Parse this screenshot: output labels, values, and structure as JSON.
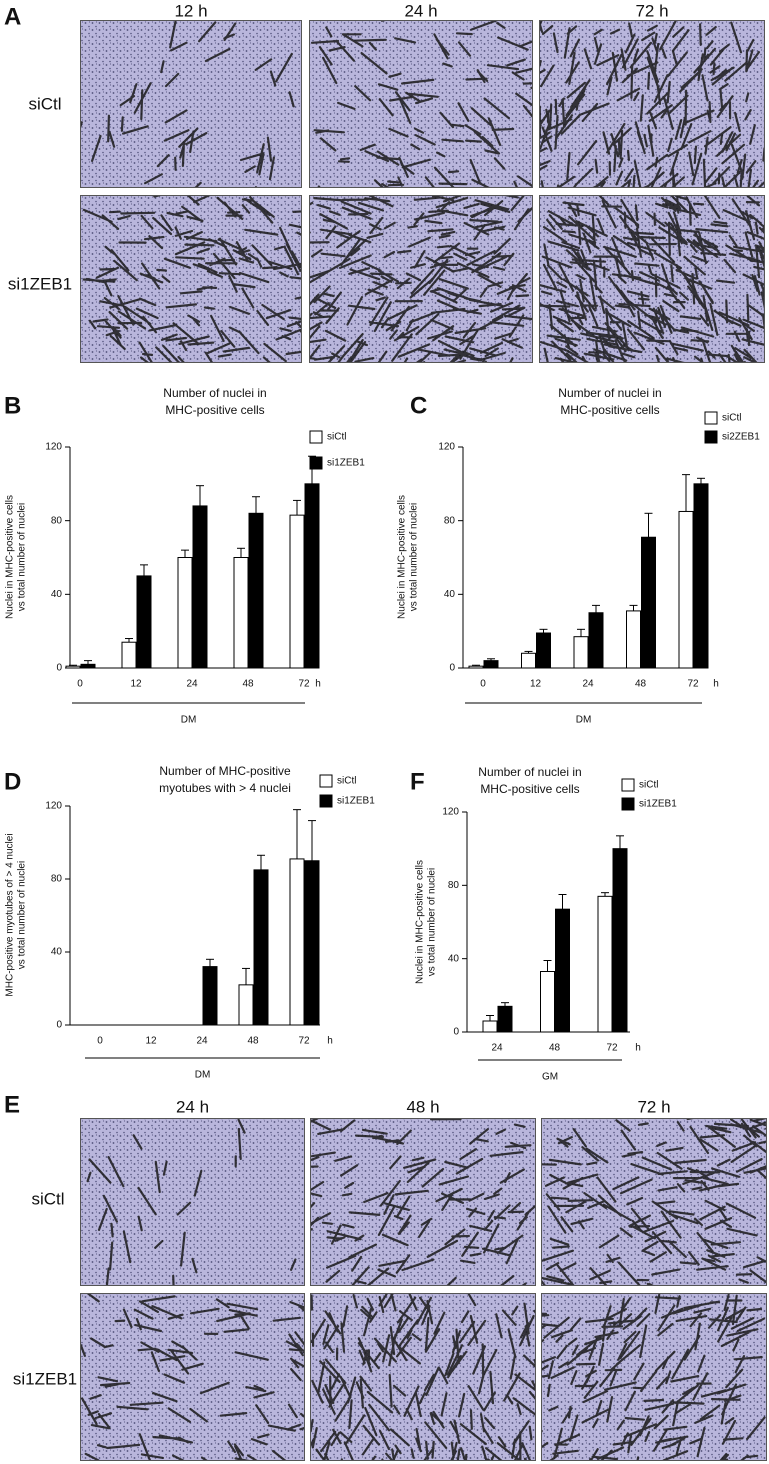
{
  "panels": [
    {
      "label": "A",
      "columns": [
        "12 h",
        "24 h",
        "72 h"
      ],
      "rows": [
        "siCtl",
        "si1ZEB1"
      ]
    },
    {
      "label": "E",
      "columns": [
        "24 h",
        "48 h",
        "72 h"
      ],
      "rows": [
        "siCtl",
        "si1ZEB1"
      ]
    }
  ],
  "chart_data": [
    {
      "type": "bar",
      "panel": "B",
      "title": [
        "Number of nuclei in",
        "MHC-positive cells"
      ],
      "ylabel": [
        "Nuclei in MHC-positive cells",
        "vs total number of nuclei"
      ],
      "xunit": "h",
      "xlabel": "DM",
      "categories": [
        "0",
        "12",
        "24",
        "48",
        "72"
      ],
      "series": [
        {
          "name": "siCtl",
          "color": "#ffffff",
          "values": [
            1,
            14,
            60,
            60,
            83
          ],
          "errors": [
            0.5,
            2,
            4,
            5,
            8
          ]
        },
        {
          "name": "si1ZEB1",
          "color": "#000000",
          "values": [
            2,
            50,
            88,
            84,
            100
          ],
          "errors": [
            2,
            6,
            11,
            9,
            15
          ]
        }
      ],
      "ylim": [
        0,
        120
      ],
      "yticks": [
        0,
        40,
        80,
        120
      ]
    },
    {
      "type": "bar",
      "panel": "C",
      "title": [
        "Number of nuclei in",
        "MHC-positive cells"
      ],
      "ylabel": [
        "Nuclei in MHC-positive cells",
        "vs total number of nuclei"
      ],
      "xunit": "h",
      "xlabel": "DM",
      "categories": [
        "0",
        "12",
        "24",
        "48",
        "72"
      ],
      "series": [
        {
          "name": "siCtl",
          "color": "#ffffff",
          "values": [
            1,
            8,
            17,
            31,
            85
          ],
          "errors": [
            0.5,
            1,
            4,
            3,
            20
          ]
        },
        {
          "name": "si2ZEB1",
          "color": "#000000",
          "values": [
            4,
            19,
            30,
            71,
            100
          ],
          "errors": [
            1,
            2,
            4,
            13,
            3
          ]
        }
      ],
      "ylim": [
        0,
        120
      ],
      "yticks": [
        0,
        40,
        80,
        120
      ]
    },
    {
      "type": "bar",
      "panel": "D",
      "title": [
        "Number of MHC-positive",
        "myotubes with > 4 nuclei"
      ],
      "ylabel": [
        "MHC-positive myotubes of > 4 nuclei",
        "vs total number of nuclei"
      ],
      "xunit": "h",
      "xlabel": "DM",
      "categories": [
        "0",
        "12",
        "24",
        "48",
        "72"
      ],
      "series": [
        {
          "name": "siCtl",
          "color": "#ffffff",
          "values": [
            null,
            null,
            null,
            22,
            91
          ],
          "errors": [
            null,
            null,
            null,
            9,
            27
          ]
        },
        {
          "name": "si1ZEB1",
          "color": "#000000",
          "values": [
            null,
            null,
            32,
            85,
            90
          ],
          "errors": [
            null,
            null,
            4,
            8,
            22
          ]
        }
      ],
      "ylim": [
        0,
        120
      ],
      "yticks": [
        0,
        40,
        80,
        120
      ]
    },
    {
      "type": "bar",
      "panel": "F",
      "title": [
        "Number of nuclei in",
        "MHC-positive cells"
      ],
      "ylabel": [
        "Nuclei in MHC-positive cells",
        "vs total number of nuclei"
      ],
      "xunit": "h",
      "xlabel": "GM",
      "categories": [
        "24",
        "48",
        "72"
      ],
      "series": [
        {
          "name": "siCtl",
          "color": "#ffffff",
          "values": [
            6,
            33,
            74
          ],
          "errors": [
            3,
            6,
            2
          ]
        },
        {
          "name": "si1ZEB1",
          "color": "#000000",
          "values": [
            14,
            67,
            100
          ],
          "errors": [
            2,
            8,
            7
          ]
        }
      ],
      "ylim": [
        0,
        120
      ],
      "yticks": [
        0,
        40,
        80,
        120
      ]
    }
  ]
}
